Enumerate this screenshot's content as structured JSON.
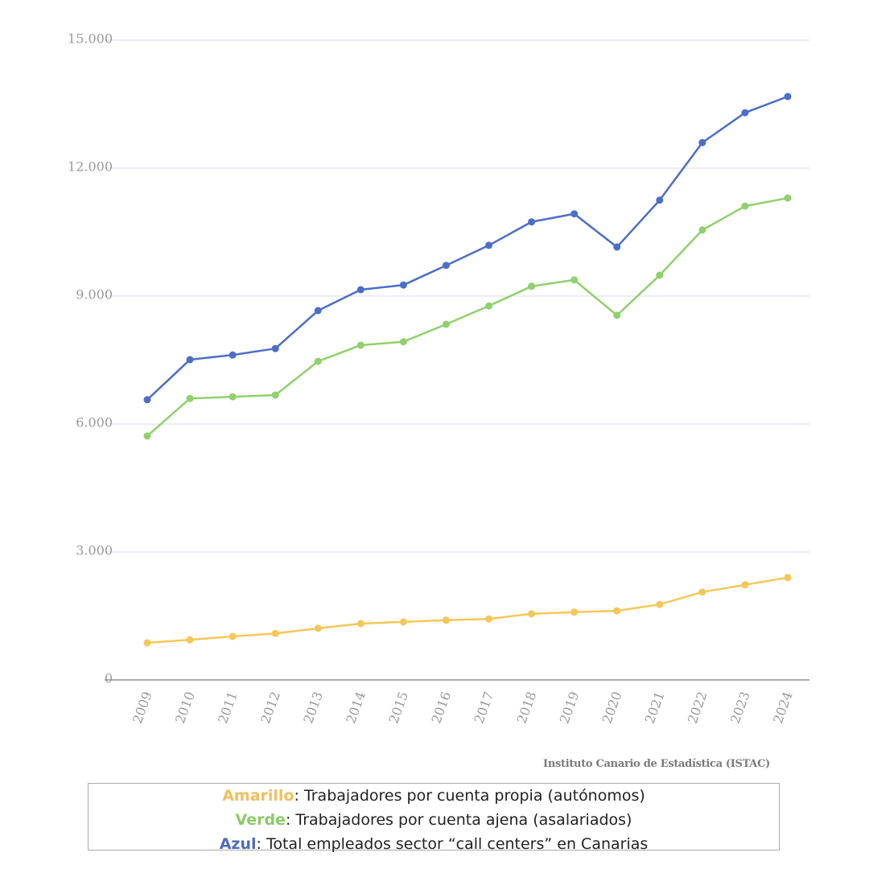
{
  "chart_data": {
    "type": "line",
    "title": "",
    "xlabel": "",
    "ylabel": "",
    "ylim": [
      0,
      15000
    ],
    "yticks": [
      0,
      3000,
      6000,
      9000,
      12000,
      15000
    ],
    "ytick_labels": [
      "0",
      "3.000",
      "6.000",
      "9.000",
      "12.000",
      "15.000"
    ],
    "grid": true,
    "categories": [
      "2009",
      "2010",
      "2011",
      "2012",
      "2013",
      "2014",
      "2015",
      "2016",
      "2017",
      "2018",
      "2019",
      "2020",
      "2021",
      "2022",
      "2023",
      "2024"
    ],
    "series": [
      {
        "color": "#f5c75a",
        "values": [
          870,
          940,
          1020,
          1090,
          1210,
          1320,
          1360,
          1400,
          1430,
          1550,
          1590,
          1620,
          1770,
          2060,
          2230,
          2400
        ]
      },
      {
        "color": "#8fd16c",
        "values": [
          5720,
          6600,
          6640,
          6680,
          7470,
          7850,
          7930,
          8340,
          8770,
          9230,
          9380,
          8550,
          9490,
          10550,
          11110,
          11300
        ]
      },
      {
        "color": "#4d6ec8",
        "values": [
          6570,
          7510,
          7620,
          7770,
          8660,
          9150,
          9260,
          9720,
          10190,
          10740,
          10930,
          10150,
          11250,
          12600,
          13300,
          13680
        ]
      }
    ]
  },
  "source": "Instituto Canario de Estadística (ISTAC)",
  "legend": [
    {
      "key": "Amarillo",
      "text": ": Trabajadores por cuenta propia (autónomos)",
      "color": "#f0c060"
    },
    {
      "key": "Verde",
      "text": ": Trabajadores por cuenta ajena (asalariados)",
      "color": "#8cc96a"
    },
    {
      "key": "Azul",
      "text": ": Total empleados sector “call centers” en Canarias",
      "color": "#4f6ab8"
    }
  ]
}
